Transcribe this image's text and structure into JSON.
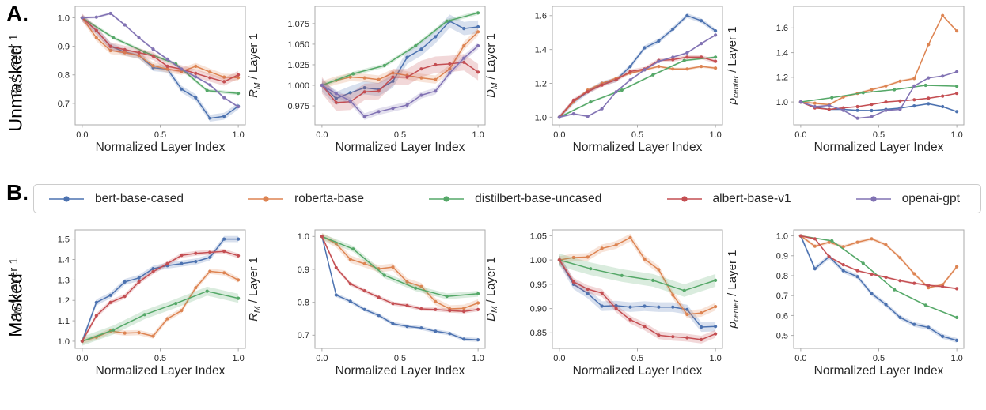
{
  "panels": {
    "a_label": "A.",
    "b_label": "B.",
    "row_a_label": "Unmasked",
    "row_b_label": "Masked"
  },
  "palette": {
    "bert-base-cased": "#4c72b0",
    "roberta-base": "#dd8452",
    "distilbert-base-uncased": "#55a868",
    "albert-base-v1": "#c44e52",
    "openai-gpt": "#8172b3"
  },
  "legend": {
    "items": [
      {
        "label": "bert-base-cased",
        "color": "#4c72b0"
      },
      {
        "label": "roberta-base",
        "color": "#dd8452"
      },
      {
        "label": "distilbert-base-uncased",
        "color": "#55a868"
      },
      {
        "label": "albert-base-v1",
        "color": "#c44e52"
      },
      {
        "label": "openai-gpt",
        "color": "#8172b3"
      }
    ]
  },
  "chart_data": {
    "type": "line",
    "xlabel": "Normalized Layer Index",
    "xticks": [
      "0.0",
      "0.5",
      "1.0"
    ],
    "x_range": [
      0,
      1
    ],
    "note": "x values per series are evenly spaced from 0 to 1 (normalized layer index); shaded bands show +/- error halfwidth",
    "charts": [
      {
        "id": "unmasked-alpha",
        "row": "unmasked",
        "col": 0,
        "ylabel": {
          "main": "α",
          "sub": "M",
          "rest": " / Layer 1"
        },
        "ytick_labels": [
          "0.7",
          "0.8",
          "0.9",
          "1.0"
        ],
        "ylim": [
          0.625,
          1.04
        ],
        "series": [
          {
            "name": "bert-base-cased",
            "band": 0.012,
            "y": [
              1.0,
              0.955,
              0.9,
              0.88,
              0.868,
              0.825,
              0.82,
              0.75,
              0.72,
              0.648,
              0.655,
              0.69
            ]
          },
          {
            "name": "roberta-base",
            "band": 0.012,
            "y": [
              1.0,
              0.93,
              0.885,
              0.878,
              0.868,
              0.832,
              0.82,
              0.812,
              0.83,
              0.81,
              0.792,
              0.79
            ]
          },
          {
            "name": "distilbert-base-uncased",
            "band": 0.006,
            "y": [
              1.0,
              0.93,
              0.88,
              0.838,
              0.745,
              0.735
            ]
          },
          {
            "name": "albert-base-v1",
            "band": 0.014,
            "y": [
              1.0,
              0.955,
              0.9,
              0.888,
              0.878,
              0.866,
              0.83,
              0.82,
              0.805,
              0.79,
              0.776,
              0.8
            ]
          },
          {
            "name": "openai-gpt",
            "band": 0.004,
            "y": [
              1.0,
              1.002,
              1.015,
              0.975,
              0.93,
              0.89,
              0.855,
              0.82,
              0.793,
              0.765,
              0.72,
              0.688
            ]
          }
        ]
      },
      {
        "id": "unmasked-R",
        "row": "unmasked",
        "col": 1,
        "ylabel": {
          "main": "R",
          "sub": "M",
          "rest": " / Layer 1"
        },
        "ytick_labels": [
          "0.975",
          "1.000",
          "1.025",
          "1.050",
          "1.075"
        ],
        "ylim": [
          0.952,
          1.096
        ],
        "series": [
          {
            "name": "bert-base-cased",
            "band": 0.008,
            "y": [
              1.0,
              0.984,
              0.991,
              0.997,
              0.995,
              1.005,
              1.034,
              1.044,
              1.059,
              1.078,
              1.069,
              1.071
            ]
          },
          {
            "name": "roberta-base",
            "band": 0.005,
            "y": [
              1.0,
              1.006,
              1.01,
              1.009,
              1.007,
              1.015,
              1.012,
              1.009,
              1.007,
              1.02,
              1.048,
              1.065
            ]
          },
          {
            "name": "distilbert-base-uncased",
            "band": 0.0025,
            "y": [
              1.0,
              1.014,
              1.024,
              1.048,
              1.078,
              1.088
            ]
          },
          {
            "name": "albert-base-v1",
            "band": 0.01,
            "y": [
              1.0,
              0.979,
              0.98,
              0.992,
              0.993,
              1.01,
              1.01,
              1.02,
              1.025,
              1.026,
              1.028,
              1.016
            ]
          },
          {
            "name": "openai-gpt",
            "band": 0.004,
            "y": [
              1.0,
              0.99,
              0.981,
              0.962,
              0.968,
              0.972,
              0.976,
              0.988,
              0.993,
              1.015,
              1.033,
              1.048
            ]
          }
        ]
      },
      {
        "id": "unmasked-D",
        "row": "unmasked",
        "col": 2,
        "ylabel": {
          "main": "D",
          "sub": "M",
          "rest": " / Layer 1"
        },
        "ytick_labels": [
          "1.0",
          "1.2",
          "1.4",
          "1.6"
        ],
        "ylim": [
          0.955,
          1.655
        ],
        "series": [
          {
            "name": "bert-base-cased",
            "band": 0.014,
            "y": [
              1.0,
              1.09,
              1.15,
              1.2,
              1.22,
              1.3,
              1.41,
              1.45,
              1.52,
              1.6,
              1.57,
              1.51
            ]
          },
          {
            "name": "roberta-base",
            "band": 0.008,
            "y": [
              1.0,
              1.09,
              1.16,
              1.2,
              1.23,
              1.26,
              1.28,
              1.3,
              1.285,
              1.285,
              1.3,
              1.29
            ]
          },
          {
            "name": "distilbert-base-uncased",
            "band": 0.006,
            "y": [
              1.0,
              1.09,
              1.16,
              1.25,
              1.335,
              1.355
            ]
          },
          {
            "name": "albert-base-v1",
            "band": 0.012,
            "y": [
              1.0,
              1.1,
              1.15,
              1.19,
              1.22,
              1.27,
              1.285,
              1.335,
              1.34,
              1.355,
              1.355,
              1.33
            ]
          },
          {
            "name": "openai-gpt",
            "band": 0.006,
            "y": [
              1.0,
              1.02,
              1.005,
              1.05,
              1.15,
              1.22,
              1.28,
              1.33,
              1.355,
              1.38,
              1.435,
              1.485
            ]
          }
        ]
      },
      {
        "id": "unmasked-rho-center",
        "row": "unmasked",
        "col": 3,
        "ylabel": {
          "main": "ρ",
          "sub": "center",
          "rest": " / Layer 1"
        },
        "ytick_labels": [
          "1.0",
          "1.2",
          "1.4",
          "1.6"
        ],
        "ylim": [
          0.815,
          1.775
        ],
        "series": [
          {
            "name": "bert-base-cased",
            "band": 0.006,
            "y": [
              1.0,
              0.958,
              0.94,
              0.94,
              0.932,
              0.93,
              0.94,
              0.95,
              0.968,
              0.985,
              0.962,
              0.922
            ]
          },
          {
            "name": "roberta-base",
            "band": 0.01,
            "y": [
              1.0,
              0.99,
              0.978,
              1.04,
              1.07,
              1.1,
              1.13,
              1.168,
              1.19,
              1.465,
              1.7,
              1.575
            ]
          },
          {
            "name": "distilbert-base-uncased",
            "band": 0.004,
            "y": [
              1.0,
              1.035,
              1.075,
              1.1,
              1.135,
              1.128
            ]
          },
          {
            "name": "albert-base-v1",
            "band": 0.005,
            "y": [
              1.0,
              0.952,
              0.94,
              0.952,
              0.962,
              0.98,
              1.0,
              1.008,
              1.018,
              1.03,
              1.048,
              1.07
            ]
          },
          {
            "name": "openai-gpt",
            "band": 0.006,
            "y": [
              1.0,
              0.962,
              0.972,
              0.932,
              0.868,
              0.88,
              0.932,
              0.94,
              1.13,
              1.195,
              1.21,
              1.245
            ]
          }
        ]
      },
      {
        "id": "masked-alpha",
        "row": "masked",
        "col": 0,
        "ylabel": {
          "main": "α",
          "sub": "M",
          "rest": " / Layer 1"
        },
        "ytick_labels": [
          "1.0",
          "1.1",
          "1.2",
          "1.3",
          "1.4",
          "1.5"
        ],
        "ylim": [
          0.965,
          1.545
        ],
        "series": [
          {
            "name": "bert-base-cased",
            "band": 0.015,
            "y": [
              1.0,
              1.19,
              1.225,
              1.29,
              1.31,
              1.355,
              1.37,
              1.38,
              1.39,
              1.41,
              1.5,
              1.5
            ]
          },
          {
            "name": "roberta-base",
            "band": 0.013,
            "y": [
              1.0,
              1.02,
              1.05,
              1.04,
              1.042,
              1.025,
              1.11,
              1.15,
              1.262,
              1.342,
              1.335,
              1.3
            ]
          },
          {
            "name": "distilbert-base-uncased",
            "band": 0.022,
            "y": [
              1.0,
              1.055,
              1.13,
              1.185,
              1.245,
              1.21
            ]
          },
          {
            "name": "albert-base-v1",
            "band": 0.012,
            "y": [
              1.0,
              1.125,
              1.19,
              1.22,
              1.29,
              1.34,
              1.38,
              1.42,
              1.43,
              1.435,
              1.44,
              1.418
            ]
          }
        ]
      },
      {
        "id": "masked-R",
        "row": "masked",
        "col": 1,
        "ylabel": {
          "main": "R",
          "sub": "M",
          "rest": " / Layer 1"
        },
        "ytick_labels": [
          "0.7",
          "0.8",
          "0.9",
          "1.0"
        ],
        "ylim": [
          0.66,
          1.02
        ],
        "series": [
          {
            "name": "bert-base-cased",
            "band": 0.006,
            "y": [
              1.0,
              0.822,
              0.803,
              0.778,
              0.76,
              0.735,
              0.727,
              0.722,
              0.712,
              0.705,
              0.688,
              0.686
            ]
          },
          {
            "name": "roberta-base",
            "band": 0.011,
            "y": [
              1.0,
              0.978,
              0.931,
              0.917,
              0.902,
              0.907,
              0.862,
              0.848,
              0.802,
              0.78,
              0.782,
              0.798
            ]
          },
          {
            "name": "distilbert-base-uncased",
            "band": 0.009,
            "y": [
              1.0,
              0.962,
              0.882,
              0.843,
              0.818,
              0.826
            ]
          },
          {
            "name": "albert-base-v1",
            "band": 0.006,
            "y": [
              1.0,
              0.905,
              0.856,
              0.835,
              0.815,
              0.796,
              0.79,
              0.78,
              0.778,
              0.775,
              0.772,
              0.778
            ]
          }
        ]
      },
      {
        "id": "masked-D",
        "row": "masked",
        "col": 2,
        "ylabel": {
          "main": "D",
          "sub": "M",
          "rest": " / Layer 1"
        },
        "ytick_labels": [
          "0.85",
          "0.90",
          "0.95",
          "1.00",
          "1.05"
        ],
        "ylim": [
          0.818,
          1.062
        ],
        "series": [
          {
            "name": "bert-base-cased",
            "band": 0.01,
            "y": [
              1.0,
              0.95,
              0.931,
              0.905,
              0.906,
              0.903,
              0.905,
              0.903,
              0.903,
              0.898,
              0.862,
              0.863
            ]
          },
          {
            "name": "roberta-base",
            "band": 0.008,
            "y": [
              1.0,
              1.005,
              1.006,
              1.024,
              1.031,
              1.046,
              1.002,
              0.98,
              0.928,
              0.888,
              0.891,
              0.904
            ]
          },
          {
            "name": "distilbert-base-uncased",
            "band": 0.013,
            "y": [
              1.0,
              0.982,
              0.968,
              0.958,
              0.937,
              0.958
            ]
          },
          {
            "name": "albert-base-v1",
            "band": 0.008,
            "y": [
              1.0,
              0.955,
              0.94,
              0.932,
              0.9,
              0.877,
              0.863,
              0.845,
              0.842,
              0.84,
              0.836,
              0.848
            ]
          }
        ]
      },
      {
        "id": "masked-rho-center",
        "row": "masked",
        "col": 3,
        "ylabel": {
          "main": "ρ",
          "sub": "center",
          "rest": " / Layer 1"
        },
        "ytick_labels": [
          "0.5",
          "0.6",
          "0.7",
          "0.8",
          "0.9",
          "1.0"
        ],
        "ylim": [
          0.435,
          1.03
        ],
        "series": [
          {
            "name": "bert-base-cased",
            "band": 0.012,
            "y": [
              1.0,
              0.835,
              0.895,
              0.825,
              0.795,
              0.71,
              0.655,
              0.59,
              0.555,
              0.54,
              0.495,
              0.475
            ]
          },
          {
            "name": "roberta-base",
            "band": 0.008,
            "y": [
              1.0,
              0.948,
              0.968,
              0.945,
              0.968,
              0.985,
              0.955,
              0.89,
              0.81,
              0.74,
              0.755,
              0.845
            ]
          },
          {
            "name": "distilbert-base-uncased",
            "band": 0.004,
            "y": [
              1.0,
              0.975,
              0.862,
              0.73,
              0.652,
              0.59
            ]
          },
          {
            "name": "albert-base-v1",
            "band": 0.005,
            "y": [
              1.0,
              0.985,
              0.895,
              0.855,
              0.825,
              0.808,
              0.792,
              0.775,
              0.762,
              0.752,
              0.745,
              0.735
            ]
          }
        ]
      }
    ]
  }
}
